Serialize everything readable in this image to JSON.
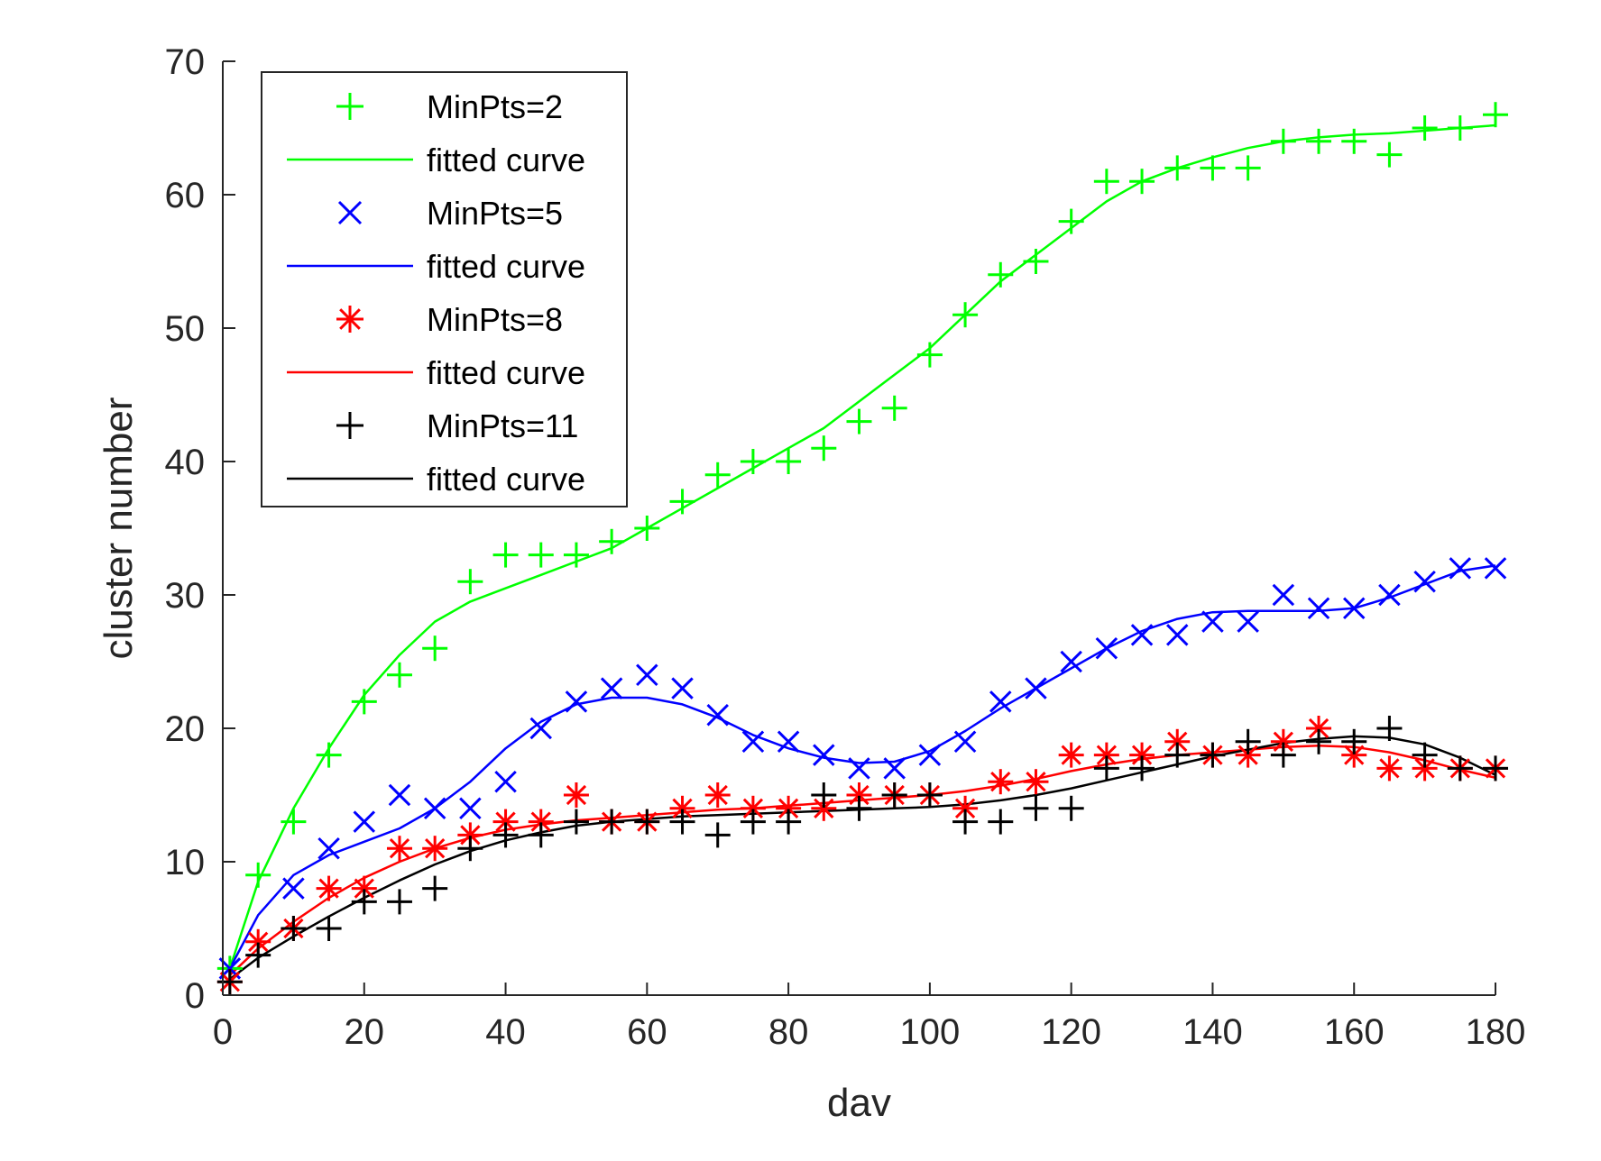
{
  "chart_data": {
    "type": "scatter",
    "xlabel": "dav",
    "ylabel": "cluster number",
    "xlim": [
      0,
      180
    ],
    "ylim": [
      0,
      70
    ],
    "xticks": [
      0,
      20,
      40,
      60,
      80,
      100,
      120,
      140,
      160,
      180
    ],
    "yticks": [
      0,
      10,
      20,
      30,
      40,
      50,
      60,
      70
    ],
    "grid": false,
    "legend_position": "top-left",
    "series": [
      {
        "name": "MinPts=2",
        "kind": "markers",
        "marker": "plus",
        "color": "#00ff00",
        "x": [
          1,
          5,
          10,
          15,
          20,
          25,
          30,
          35,
          40,
          45,
          50,
          55,
          60,
          65,
          70,
          75,
          80,
          85,
          90,
          95,
          100,
          105,
          110,
          115,
          120,
          125,
          130,
          135,
          140,
          145,
          150,
          155,
          160,
          165,
          170,
          175,
          180
        ],
        "y": [
          2,
          9,
          13,
          18,
          22,
          24,
          26,
          31,
          33,
          33,
          33,
          34,
          35,
          37,
          39,
          40,
          40,
          41,
          43,
          44,
          48,
          51,
          54,
          55,
          58,
          61,
          61,
          62,
          62,
          62,
          64,
          64,
          64,
          63,
          65,
          65,
          66
        ]
      },
      {
        "name": "fitted curve",
        "kind": "line",
        "color": "#00ff00",
        "x": [
          1,
          5,
          10,
          15,
          20,
          25,
          30,
          35,
          40,
          45,
          50,
          55,
          60,
          65,
          70,
          75,
          80,
          85,
          90,
          95,
          100,
          105,
          110,
          115,
          120,
          125,
          130,
          135,
          140,
          145,
          150,
          155,
          160,
          165,
          170,
          175,
          180
        ],
        "y": [
          2,
          8.5,
          14,
          18.5,
          22.5,
          25.5,
          28,
          29.5,
          30.5,
          31.5,
          32.5,
          33.5,
          35,
          36.5,
          38,
          39.5,
          41,
          42.5,
          44.5,
          46.5,
          48.5,
          51,
          53.5,
          55.5,
          57.5,
          59.5,
          61,
          62,
          62.8,
          63.5,
          64,
          64.3,
          64.5,
          64.6,
          64.8,
          65,
          65.2
        ]
      },
      {
        "name": "MinPts=5",
        "kind": "markers",
        "marker": "x",
        "color": "#0000ff",
        "x": [
          1,
          10,
          15,
          20,
          25,
          30,
          35,
          40,
          45,
          50,
          55,
          60,
          65,
          70,
          75,
          80,
          85,
          90,
          95,
          100,
          105,
          110,
          115,
          120,
          125,
          130,
          135,
          140,
          145,
          150,
          155,
          160,
          165,
          170,
          175,
          180
        ],
        "y": [
          2,
          8,
          11,
          13,
          15,
          14,
          14,
          16,
          20,
          22,
          23,
          24,
          23,
          21,
          19,
          19,
          18,
          17,
          17,
          18,
          19,
          22,
          23,
          25,
          26,
          27,
          27,
          28,
          28,
          30,
          29,
          29,
          30,
          31,
          32,
          32
        ]
      },
      {
        "name": "fitted curve",
        "kind": "line",
        "color": "#0000ff",
        "x": [
          1,
          5,
          10,
          15,
          20,
          25,
          30,
          35,
          40,
          45,
          50,
          55,
          60,
          65,
          70,
          75,
          80,
          85,
          90,
          95,
          100,
          105,
          110,
          115,
          120,
          125,
          130,
          135,
          140,
          145,
          150,
          155,
          160,
          165,
          170,
          175,
          180
        ],
        "y": [
          2,
          6,
          9,
          10.5,
          11.5,
          12.5,
          14,
          16,
          18.5,
          20.5,
          21.8,
          22.3,
          22.3,
          21.8,
          20.8,
          19.5,
          18.5,
          17.8,
          17.4,
          17.5,
          18.3,
          19.8,
          21.5,
          23,
          24.5,
          26,
          27.3,
          28.2,
          28.7,
          28.8,
          28.8,
          28.8,
          29,
          29.8,
          30.8,
          31.8,
          32.2
        ]
      },
      {
        "name": "MinPts=8",
        "kind": "markers",
        "marker": "asterisk",
        "color": "#ff0000",
        "x": [
          1,
          5,
          10,
          15,
          20,
          25,
          30,
          35,
          40,
          45,
          50,
          55,
          60,
          65,
          70,
          75,
          80,
          85,
          90,
          95,
          100,
          105,
          110,
          115,
          120,
          125,
          130,
          135,
          140,
          145,
          150,
          155,
          160,
          165,
          170,
          175,
          180
        ],
        "y": [
          1,
          4,
          5,
          8,
          8,
          11,
          11,
          12,
          13,
          13,
          15,
          13,
          13,
          14,
          15,
          14,
          14,
          14,
          15,
          15,
          15,
          14,
          16,
          16,
          18,
          18,
          18,
          19,
          18,
          18,
          19,
          20,
          18,
          17,
          17,
          17,
          17
        ]
      },
      {
        "name": "fitted curve",
        "kind": "line",
        "color": "#ff0000",
        "x": [
          1,
          5,
          10,
          15,
          20,
          25,
          30,
          35,
          40,
          45,
          50,
          55,
          60,
          65,
          70,
          75,
          80,
          85,
          90,
          95,
          100,
          105,
          110,
          115,
          120,
          125,
          130,
          135,
          140,
          145,
          150,
          155,
          160,
          165,
          170,
          175,
          180
        ],
        "y": [
          1.5,
          3.5,
          5.5,
          7.3,
          8.8,
          10,
          11,
          11.8,
          12.4,
          12.8,
          13.1,
          13.3,
          13.5,
          13.7,
          13.9,
          14,
          14.2,
          14.4,
          14.6,
          14.8,
          15,
          15.3,
          15.7,
          16.2,
          16.8,
          17.3,
          17.7,
          18,
          18.2,
          18.4,
          18.6,
          18.7,
          18.6,
          18.2,
          17.6,
          16.9,
          16.3
        ]
      },
      {
        "name": "MinPts=11",
        "kind": "markers",
        "marker": "plus",
        "color": "#000000",
        "x": [
          1,
          5,
          10,
          15,
          20,
          25,
          30,
          35,
          40,
          45,
          50,
          55,
          60,
          65,
          70,
          75,
          80,
          85,
          90,
          95,
          100,
          105,
          110,
          115,
          120,
          125,
          130,
          135,
          140,
          145,
          150,
          155,
          160,
          165,
          170,
          175,
          180
        ],
        "y": [
          1,
          3,
          5,
          5,
          7,
          7,
          8,
          11,
          12,
          12,
          13,
          13,
          13,
          13,
          12,
          13,
          13,
          15,
          14,
          15,
          15,
          13,
          13,
          14,
          14,
          17,
          17,
          18,
          18,
          19,
          18,
          19,
          19,
          20,
          18,
          17,
          17
        ]
      },
      {
        "name": "fitted curve",
        "kind": "line",
        "color": "#000000",
        "x": [
          1,
          5,
          10,
          15,
          20,
          25,
          30,
          35,
          40,
          45,
          50,
          55,
          60,
          65,
          70,
          75,
          80,
          85,
          90,
          95,
          100,
          105,
          110,
          115,
          120,
          125,
          130,
          135,
          140,
          145,
          150,
          155,
          160,
          165,
          170,
          175,
          180
        ],
        "y": [
          1.2,
          2.8,
          4.4,
          5.9,
          7.3,
          8.6,
          9.8,
          10.8,
          11.6,
          12.2,
          12.7,
          13,
          13.2,
          13.4,
          13.5,
          13.6,
          13.7,
          13.8,
          13.9,
          14,
          14.1,
          14.3,
          14.6,
          15,
          15.5,
          16.1,
          16.7,
          17.3,
          17.9,
          18.4,
          18.9,
          19.2,
          19.4,
          19.3,
          18.8,
          17.8,
          16.5
        ]
      }
    ]
  }
}
